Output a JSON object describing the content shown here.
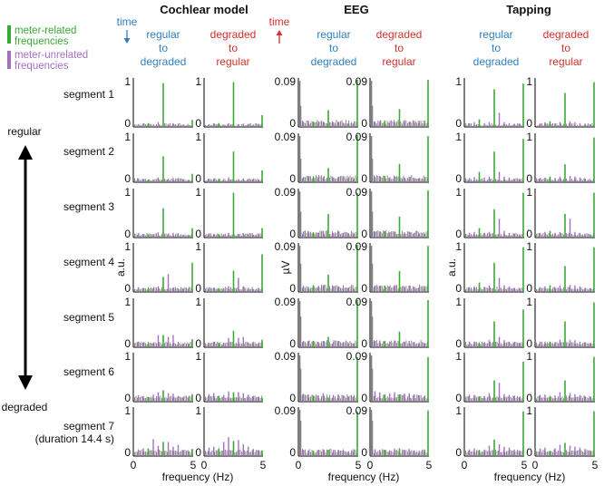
{
  "chart_data": {
    "type": "multi-panel frequency spectra (bar)",
    "legend": {
      "meter_related": {
        "label": [
          "meter-related",
          "frequencies"
        ],
        "color": "#3aa935"
      },
      "meter_unrelated": {
        "label": [
          "meter-unrelated",
          "frequencies"
        ],
        "color": "#a56fc5"
      },
      "other_color": "#808080"
    },
    "time_labels": {
      "blue": {
        "text": "time",
        "color": "#2f7fc0",
        "direction": "down"
      },
      "red": {
        "text": "time",
        "color": "#d2302c",
        "direction": "up"
      }
    },
    "order_colors": {
      "regular_to_degraded": "#2f7fc0",
      "degraded_to_regular": "#d2302c"
    },
    "column_groups": [
      {
        "title": "Cochlear model",
        "ylim": [
          0,
          1
        ],
        "ytick_top": "1",
        "ytick_bottom": "0",
        "ylabel": "a.u.",
        "subcolumns": [
          [
            "regular",
            "to",
            "degraded"
          ],
          [
            "degraded",
            "to",
            "regular"
          ]
        ]
      },
      {
        "title": "EEG",
        "ylim": [
          0,
          0.09
        ],
        "ytick_top": "0.09",
        "ytick_bottom": "0",
        "ylabel": "µV",
        "subcolumns": [
          [
            "regular",
            "to",
            "degraded"
          ],
          [
            "degraded",
            "to",
            "regular"
          ]
        ]
      },
      {
        "title": "Tapping",
        "ylim": [
          0,
          1
        ],
        "ytick_top": "1",
        "ytick_bottom": "0",
        "ylabel": "a.u.",
        "subcolumns": [
          [
            "regular",
            "to",
            "degraded"
          ],
          [
            "degraded",
            "to",
            "regular"
          ]
        ]
      }
    ],
    "rows": [
      [
        "segment 1"
      ],
      [
        "segment 2"
      ],
      [
        "segment 3"
      ],
      [
        "segment 4"
      ],
      [
        "segment 5"
      ],
      [
        "segment 6"
      ],
      [
        "segment 7",
        "(duration 14.4 s)"
      ]
    ],
    "xaxis": {
      "label": "frequency (Hz)",
      "xlim": [
        0,
        5
      ],
      "ticks": [
        "0",
        "5"
      ]
    },
    "side_axis": {
      "top": "regular",
      "bottom": "degraded"
    },
    "peaks_hz": {
      "meter_related": [
        1.25,
        2.5,
        5.0
      ],
      "meter_unrelated": [
        0.42,
        0.83,
        1.67,
        2.08,
        2.92,
        3.33,
        3.75,
        4.17,
        4.58
      ]
    },
    "peak_values": {
      "cochlear": [
        [
          [
            0.08,
            0.93,
            0.15
          ],
          [
            0.06,
            0.08,
            0.05,
            0.1,
            0.06,
            0.08,
            0.07,
            0.05,
            0.04
          ]
        ],
        [
          [
            0.06,
            0.55,
            0.18
          ],
          [
            0.08,
            0.07,
            0.06,
            0.1,
            0.07,
            0.09,
            0.06,
            0.05,
            0.05
          ]
        ],
        [
          [
            0.07,
            0.62,
            0.2
          ],
          [
            0.09,
            0.08,
            0.07,
            0.11,
            0.08,
            0.1,
            0.07,
            0.06,
            0.05
          ]
        ],
        [
          [
            0.07,
            0.32,
            0.62
          ],
          [
            0.1,
            0.09,
            0.08,
            0.12,
            0.38,
            0.1,
            0.08,
            0.06,
            0.05
          ]
        ],
        [
          [
            0.08,
            0.26,
            0.17
          ],
          [
            0.12,
            0.1,
            0.09,
            0.26,
            0.22,
            0.26,
            0.1,
            0.08,
            0.07
          ]
        ],
        [
          [
            0.1,
            0.24,
            0.16
          ],
          [
            0.14,
            0.12,
            0.15,
            0.2,
            0.18,
            0.17,
            0.12,
            0.1,
            0.09
          ]
        ],
        [
          [
            0.16,
            0.3,
            0.15
          ],
          [
            0.14,
            0.16,
            0.36,
            0.22,
            0.3,
            0.2,
            0.24,
            0.12,
            0.1
          ]
        ]
      ],
      "cochlear_dr": [
        [
          [
            0.08,
            0.95,
            0.25
          ],
          [
            0.06,
            0.07,
            0.05,
            0.08,
            0.06,
            0.07,
            0.06,
            0.05,
            0.04
          ]
        ],
        [
          [
            0.07,
            0.65,
            0.25
          ],
          [
            0.08,
            0.08,
            0.07,
            0.1,
            0.07,
            0.08,
            0.07,
            0.06,
            0.05
          ]
        ],
        [
          [
            0.07,
            0.95,
            0.2
          ],
          [
            0.09,
            0.08,
            0.07,
            0.1,
            0.08,
            0.09,
            0.07,
            0.06,
            0.05
          ]
        ],
        [
          [
            0.08,
            0.45,
            0.8
          ],
          [
            0.1,
            0.09,
            0.08,
            0.12,
            0.3,
            0.12,
            0.09,
            0.06,
            0.05
          ]
        ],
        [
          [
            0.09,
            0.35,
            0.16
          ],
          [
            0.1,
            0.12,
            0.1,
            0.2,
            0.2,
            0.22,
            0.1,
            0.08,
            0.07
          ]
        ],
        [
          [
            0.12,
            0.2,
            0.08
          ],
          [
            0.16,
            0.18,
            0.14,
            0.22,
            0.2,
            0.18,
            0.15,
            0.12,
            0.1
          ]
        ],
        [
          [
            0.16,
            0.32,
            0.12
          ],
          [
            0.18,
            0.2,
            0.3,
            0.4,
            0.34,
            0.25,
            0.2,
            0.15,
            0.12
          ]
        ]
      ],
      "eeg_rd": [
        [
          [
            0.01,
            0.032,
            0.09
          ],
          [
            0.01,
            0.012,
            0.008,
            0.01,
            0.009,
            0.01,
            0.008,
            0.007,
            0.006
          ]
        ],
        [
          [
            0.01,
            0.027,
            0.09
          ],
          [
            0.01,
            0.011,
            0.008,
            0.01,
            0.009,
            0.01,
            0.008,
            0.007,
            0.006
          ]
        ],
        [
          [
            0.01,
            0.045,
            0.085
          ],
          [
            0.011,
            0.012,
            0.009,
            0.012,
            0.009,
            0.011,
            0.009,
            0.008,
            0.007
          ]
        ],
        [
          [
            0.012,
            0.033,
            0.09
          ],
          [
            0.012,
            0.01,
            0.009,
            0.013,
            0.01,
            0.011,
            0.009,
            0.008,
            0.007
          ]
        ],
        [
          [
            0.012,
            0.02,
            0.09
          ],
          [
            0.012,
            0.012,
            0.01,
            0.012,
            0.01,
            0.012,
            0.01,
            0.008,
            0.007
          ]
        ],
        [
          [
            0.012,
            0.008,
            0.085
          ],
          [
            0.015,
            0.014,
            0.012,
            0.016,
            0.013,
            0.014,
            0.012,
            0.01,
            0.009
          ]
        ],
        [
          [
            0.01,
            0.012,
            0.085
          ],
          [
            0.012,
            0.011,
            0.01,
            0.013,
            0.011,
            0.012,
            0.01,
            0.009,
            0.008
          ]
        ]
      ],
      "eeg_dr": [
        [
          [
            0.012,
            0.034,
            0.09
          ],
          [
            0.01,
            0.011,
            0.008,
            0.01,
            0.009,
            0.01,
            0.008,
            0.007,
            0.006
          ]
        ],
        [
          [
            0.012,
            0.035,
            0.088
          ],
          [
            0.011,
            0.012,
            0.009,
            0.011,
            0.009,
            0.01,
            0.008,
            0.007,
            0.006
          ]
        ],
        [
          [
            0.012,
            0.04,
            0.09
          ],
          [
            0.011,
            0.012,
            0.009,
            0.012,
            0.01,
            0.011,
            0.009,
            0.008,
            0.007
          ]
        ],
        [
          [
            0.012,
            0.04,
            0.088
          ],
          [
            0.012,
            0.012,
            0.01,
            0.013,
            0.01,
            0.012,
            0.01,
            0.008,
            0.007
          ]
        ],
        [
          [
            0.012,
            0.03,
            0.09
          ],
          [
            0.012,
            0.013,
            0.011,
            0.013,
            0.011,
            0.012,
            0.01,
            0.009,
            0.008
          ]
        ],
        [
          [
            0.014,
            0.014,
            0.085
          ],
          [
            0.02,
            0.018,
            0.016,
            0.018,
            0.015,
            0.016,
            0.014,
            0.012,
            0.01
          ]
        ],
        [
          [
            0.012,
            0.015,
            0.087
          ],
          [
            0.013,
            0.012,
            0.011,
            0.014,
            0.012,
            0.013,
            0.011,
            0.01,
            0.009
          ]
        ]
      ],
      "tap_rd": [
        [
          [
            0.16,
            0.8,
            0.92
          ],
          [
            0.08,
            0.1,
            0.08,
            0.1,
            0.3,
            0.1,
            0.08,
            0.07,
            0.06
          ]
        ],
        [
          [
            0.22,
            0.65,
            0.92
          ],
          [
            0.09,
            0.11,
            0.1,
            0.12,
            0.22,
            0.12,
            0.1,
            0.08,
            0.07
          ]
        ],
        [
          [
            0.2,
            0.6,
            0.95
          ],
          [
            0.1,
            0.12,
            0.1,
            0.12,
            0.4,
            0.14,
            0.1,
            0.08,
            0.07
          ]
        ],
        [
          [
            0.2,
            0.62,
            0.95
          ],
          [
            0.1,
            0.12,
            0.11,
            0.14,
            0.3,
            0.14,
            0.12,
            0.09,
            0.08
          ]
        ],
        [
          [
            0.1,
            0.55,
            0.8
          ],
          [
            0.12,
            0.12,
            0.1,
            0.15,
            0.22,
            0.15,
            0.12,
            0.1,
            0.09
          ]
        ],
        [
          [
            0.1,
            0.45,
            0.85
          ],
          [
            0.15,
            0.14,
            0.12,
            0.18,
            0.4,
            0.16,
            0.14,
            0.12,
            0.1
          ]
        ],
        [
          [
            0.12,
            0.35,
            0.95
          ],
          [
            0.14,
            0.16,
            0.14,
            0.22,
            0.25,
            0.2,
            0.18,
            0.14,
            0.12
          ]
        ]
      ],
      "tap_dr": [
        [
          [
            0.12,
            0.72,
            0.95
          ],
          [
            0.08,
            0.1,
            0.08,
            0.1,
            0.12,
            0.1,
            0.08,
            0.07,
            0.06
          ]
        ],
        [
          [
            0.12,
            0.38,
            0.95
          ],
          [
            0.09,
            0.1,
            0.09,
            0.12,
            0.13,
            0.12,
            0.1,
            0.08,
            0.07
          ]
        ],
        [
          [
            0.14,
            0.5,
            0.95
          ],
          [
            0.1,
            0.12,
            0.1,
            0.12,
            0.4,
            0.12,
            0.1,
            0.08,
            0.07
          ]
        ],
        [
          [
            0.14,
            0.55,
            0.95
          ],
          [
            0.1,
            0.12,
            0.1,
            0.14,
            0.15,
            0.14,
            0.12,
            0.09,
            0.08
          ]
        ],
        [
          [
            0.12,
            0.55,
            0.95
          ],
          [
            0.12,
            0.12,
            0.11,
            0.16,
            0.15,
            0.15,
            0.12,
            0.1,
            0.09
          ]
        ],
        [
          [
            0.1,
            0.45,
            0.95
          ],
          [
            0.14,
            0.15,
            0.13,
            0.2,
            0.18,
            0.16,
            0.14,
            0.12,
            0.1
          ]
        ],
        [
          [
            0.1,
            0.28,
            0.95
          ],
          [
            0.16,
            0.18,
            0.16,
            0.24,
            0.22,
            0.2,
            0.18,
            0.15,
            0.12
          ]
        ]
      ]
    }
  }
}
